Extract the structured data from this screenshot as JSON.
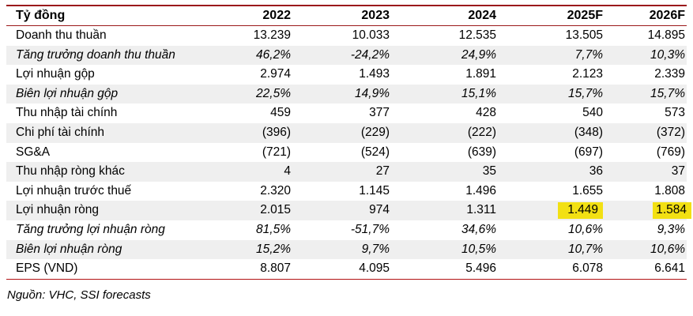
{
  "table": {
    "header": {
      "unit_label": "Tỷ đồng",
      "columns": [
        "2022",
        "2023",
        "2024",
        "2025F",
        "2026F"
      ]
    },
    "rows": [
      {
        "label": "Doanh thu thuần",
        "values": [
          "13.239",
          "10.033",
          "12.535",
          "13.505",
          "14.895"
        ]
      },
      {
        "label": "Tăng trưởng doanh thu thuần",
        "values": [
          "46,2%",
          "-24,2%",
          "24,9%",
          "7,7%",
          "10,3%"
        ]
      },
      {
        "label": "Lợi nhuận gộp",
        "values": [
          "2.974",
          "1.493",
          "1.891",
          "2.123",
          "2.339"
        ]
      },
      {
        "label": "Biên lợi nhuận gộp",
        "values": [
          "22,5%",
          "14,9%",
          "15,1%",
          "15,7%",
          "15,7%"
        ]
      },
      {
        "label": "Thu nhập tài chính",
        "values": [
          "459",
          "377",
          "428",
          "540",
          "573"
        ]
      },
      {
        "label": "Chi phí tài chính",
        "values": [
          "(396)",
          "(229)",
          "(222)",
          "(348)",
          "(372)"
        ]
      },
      {
        "label": "SG&A",
        "values": [
          "(721)",
          "(524)",
          "(639)",
          "(697)",
          "(769)"
        ]
      },
      {
        "label": "Thu nhập ròng khác",
        "values": [
          "4",
          "27",
          "35",
          "36",
          "37"
        ]
      },
      {
        "label": "Lợi nhuận trước thuế",
        "values": [
          "2.320",
          "1.145",
          "1.496",
          "1.655",
          "1.808"
        ]
      },
      {
        "label": "Lợi nhuận ròng",
        "values": [
          "2.015",
          "974",
          "1.311",
          "1.449",
          "1.584"
        ],
        "highlighted_columns": [
          "2025F",
          "2026F"
        ]
      },
      {
        "label": "Tăng trưởng lợi nhuận ròng",
        "values": [
          "81,5%",
          "-51,7%",
          "34,6%",
          "10,6%",
          "9,3%"
        ]
      },
      {
        "label": "Biên lợi nhuận ròng",
        "values": [
          "15,2%",
          "9,7%",
          "10,5%",
          "10,7%",
          "10,6%"
        ]
      },
      {
        "label": "EPS (VND)",
        "values": [
          "8.807",
          "4.095",
          "5.496",
          "6.078",
          "6.641"
        ]
      }
    ]
  },
  "footer": {
    "source": "Nguồn: VHC, SSI forecasts"
  },
  "colors": {
    "accent_dark_red": "#9B191B",
    "bottom_rule_red": "#B31215",
    "alt_row_gray": "#EFEFEF",
    "highlight_yellow": "#F2E013"
  }
}
